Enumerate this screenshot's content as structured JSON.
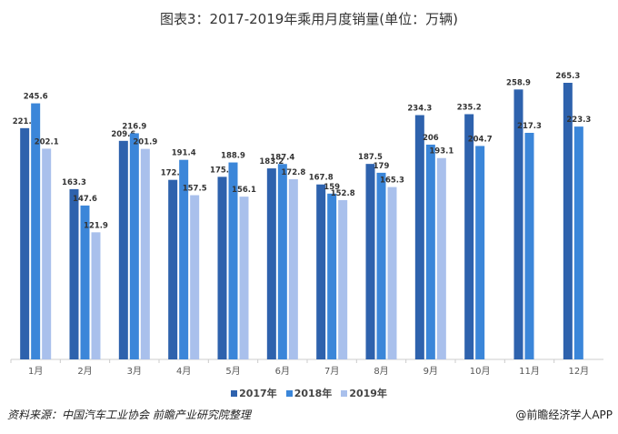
{
  "chart_data": {
    "type": "bar",
    "title": "图表3：2017-2019年乘用月度销量(单位：万辆)",
    "categories": [
      "1月",
      "2月",
      "3月",
      "4月",
      "5月",
      "6月",
      "7月",
      "8月",
      "9月",
      "10月",
      "11月",
      "12月"
    ],
    "series": [
      {
        "name": "2017年",
        "color": "#2e62ad",
        "values": [
          221.8,
          163.3,
          209.6,
          172.2,
          175.1,
          183.2,
          167.8,
          187.5,
          234.3,
          235.2,
          258.9,
          265.3
        ]
      },
      {
        "name": "2018年",
        "color": "#3b86d9",
        "values": [
          245.6,
          147.6,
          216.9,
          191.4,
          188.9,
          187.4,
          159,
          179,
          206,
          204.7,
          217.3,
          223.3
        ]
      },
      {
        "name": "2019年",
        "color": "#a9c0ec",
        "values": [
          202.1,
          121.9,
          201.9,
          157.5,
          156.1,
          172.8,
          152.8,
          165.3,
          193.1,
          null,
          null,
          null
        ]
      }
    ],
    "ylim": [
      0,
      270
    ],
    "grid": false,
    "legend": "bottom-center"
  },
  "footer": {
    "source": "资料来源：中国汽车工业协会 前瞻产业研究院整理",
    "brand": "@前瞻经济学人APP"
  }
}
